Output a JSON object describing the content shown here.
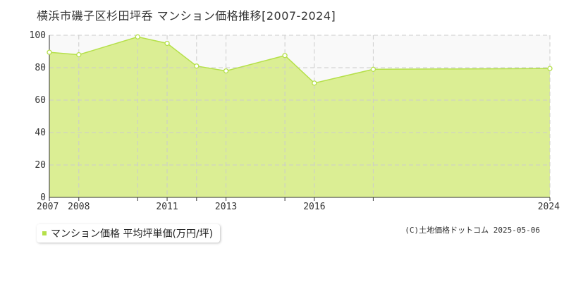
{
  "chart_data": {
    "type": "area",
    "title": "横浜市磯子区杉田坪呑 マンション価格推移[2007-2024]",
    "x_ticks": [
      "2007",
      "2008",
      "2011",
      "2013",
      "2016",
      "2024"
    ],
    "x": [
      2007,
      2008,
      2010,
      2011,
      2012,
      2013,
      2015,
      2016,
      2018,
      2024
    ],
    "y_ticks": [
      "0",
      "20",
      "40",
      "60",
      "80",
      "100"
    ],
    "ylim": [
      0,
      100
    ],
    "grid": true,
    "legend_position": "bottom-left",
    "series": [
      {
        "name": "マンション価格 平均坪単価(万円/坪)",
        "values": [
          89.5,
          88,
          99,
          95,
          81,
          78,
          87.5,
          70.5,
          79,
          79.5
        ],
        "color": "#b5e04a",
        "fill_color": "#dbee94"
      }
    ]
  },
  "copyright": "(C)土地価格ドットコム 2025-05-06"
}
